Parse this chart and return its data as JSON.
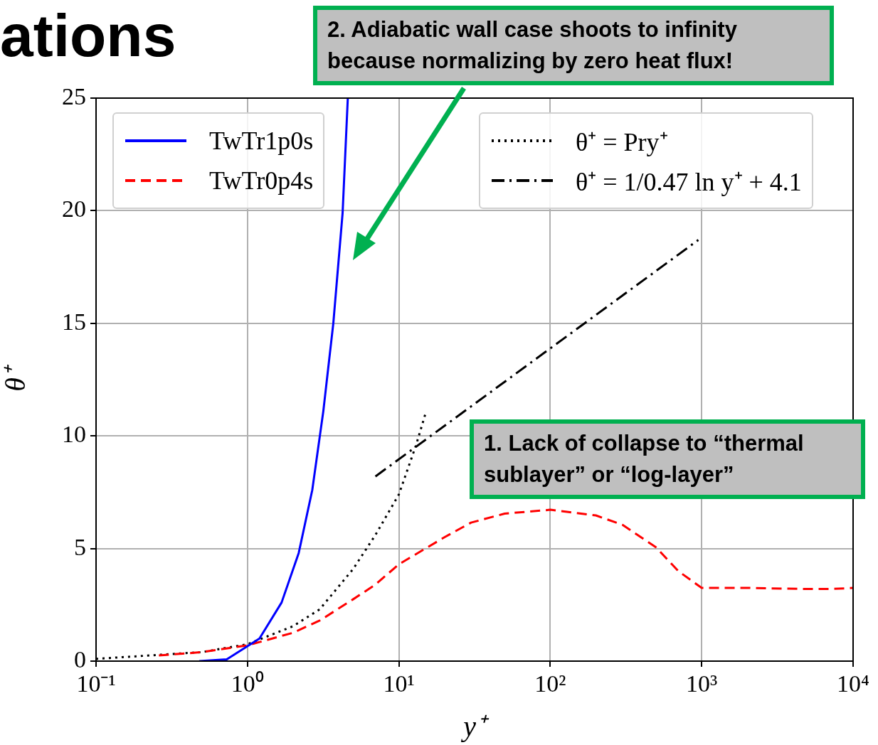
{
  "chart_data": {
    "type": "line",
    "title": "ations",
    "xlabel": "y⁺",
    "ylabel": "θ⁺",
    "log": "x",
    "grid": true,
    "legend": "top",
    "xlim": [
      0.1,
      10000
    ],
    "ylim": [
      0,
      25
    ],
    "xticks": [
      {
        "value": 0.1,
        "label": "10⁻¹"
      },
      {
        "value": 1,
        "label": "10⁰"
      },
      {
        "value": 10,
        "label": "10¹"
      },
      {
        "value": 100,
        "label": "10²"
      },
      {
        "value": 1000,
        "label": "10³"
      },
      {
        "value": 10000,
        "label": "10⁴"
      }
    ],
    "yticks": [
      0,
      5,
      10,
      15,
      20,
      25
    ],
    "series": [
      {
        "name": "TwTr1p0s",
        "color": "#0000ff",
        "line_style": "solid",
        "x": [
          0.48,
          0.73,
          1.2,
          1.68,
          2.18,
          2.68,
          3.17,
          3.69,
          4.25,
          4.6
        ],
        "values": [
          0,
          0.08,
          1.0,
          2.6,
          4.8,
          7.6,
          11.1,
          15.0,
          19.9,
          25
        ]
      },
      {
        "name": "TwTr0p4s",
        "color": "#ff0000",
        "line_style": "dashed",
        "x": [
          0.26,
          0.5,
          1,
          2,
          3,
          5,
          7,
          10,
          20,
          30,
          50,
          100,
          200,
          300,
          500,
          700,
          1000,
          2000,
          5000,
          7000,
          10000
        ],
        "values": [
          0.25,
          0.4,
          0.7,
          1.26,
          1.8,
          2.75,
          3.4,
          4.3,
          5.5,
          6.15,
          6.55,
          6.72,
          6.47,
          6.05,
          5.05,
          4.0,
          3.25,
          3.25,
          3.2,
          3.2,
          3.25
        ]
      },
      {
        "name": "θ⁺ = Pry⁺",
        "color": "#000000",
        "line_style": "dotted",
        "x": [
          0.1,
          0.5,
          1,
          2,
          3,
          5,
          7,
          10,
          13,
          15
        ],
        "values": [
          0.1,
          0.4,
          0.75,
          1.55,
          2.3,
          4.1,
          5.6,
          7.4,
          9.6,
          11.0
        ]
      },
      {
        "name": "θ⁺ = 1/0.47 ln y⁺ + 4.1",
        "color": "#000000",
        "line_style": "dashdot",
        "x": [
          7,
          950
        ],
        "values": [
          8.2,
          18.7
        ]
      }
    ],
    "annotations": [
      "2. Adiabatic wall case shoots to infinity because normalizing by zero heat flux!",
      "1. Lack of collapse to “thermal sublayer” or “log-layer”"
    ]
  }
}
